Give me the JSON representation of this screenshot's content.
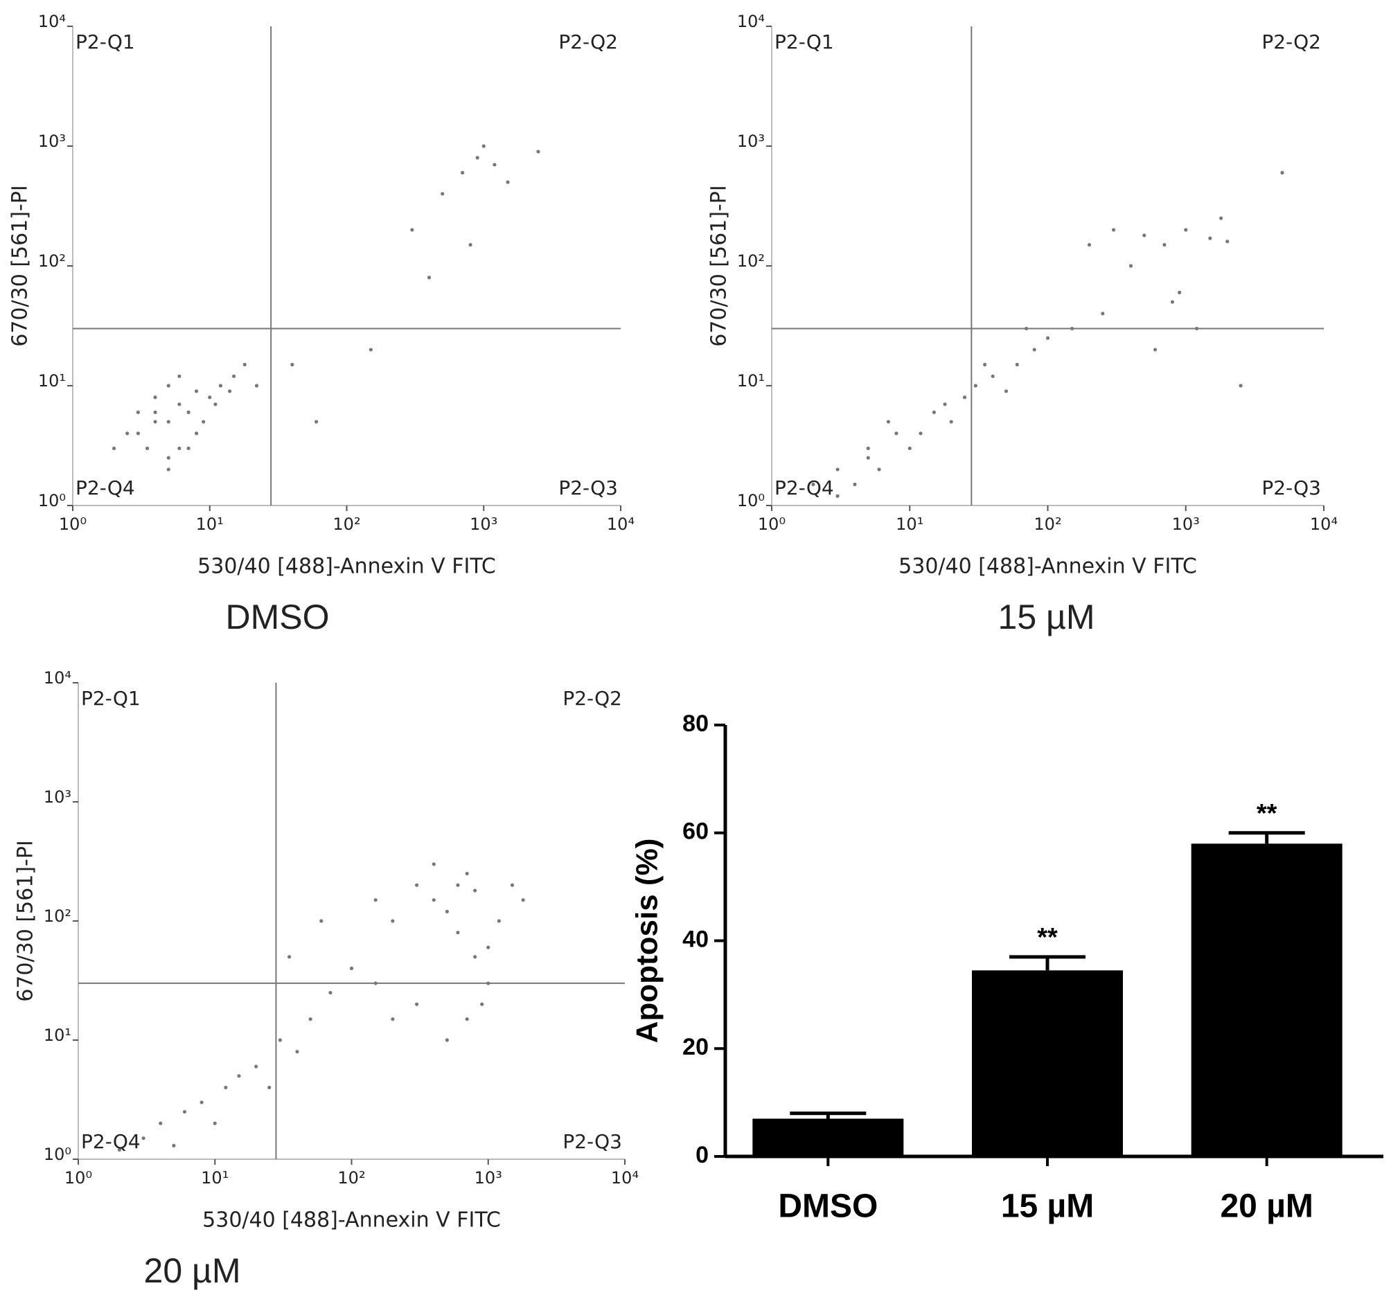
{
  "chart_data": [
    {
      "type": "scatter",
      "caption": "DMSO",
      "x_label": "530/40 [488]-Annexin V FITC",
      "y_label": "670/30 [561]-PI",
      "quadrant_labels": [
        "P2-Q1",
        "P2-Q2",
        "P2-Q3",
        "P2-Q4"
      ],
      "log_scale": true,
      "color": "#777777",
      "gate": {
        "x": 28,
        "y": 30
      },
      "xlim": [
        1,
        10000
      ],
      "ylim": [
        1,
        10000
      ],
      "xticks": [
        {
          "value": 1,
          "label": "10⁰"
        },
        {
          "value": 10,
          "label": "10¹"
        },
        {
          "value": 100,
          "label": "10²"
        },
        {
          "value": 1000,
          "label": "10³"
        },
        {
          "value": 10000,
          "label": "10⁴"
        }
      ],
      "yticks": [
        {
          "value": 1,
          "label": "10⁰"
        },
        {
          "value": 10,
          "label": "10¹"
        },
        {
          "value": 100,
          "label": "10²"
        },
        {
          "value": 1000,
          "label": "10³"
        },
        {
          "value": 10000,
          "label": "10⁴"
        }
      ],
      "x": [
        3,
        4,
        5,
        6,
        4,
        5,
        7,
        8,
        3.5,
        6,
        10,
        12,
        15,
        9,
        5,
        4,
        2.5,
        6,
        18,
        22,
        7,
        3,
        5,
        8,
        11,
        14,
        2,
        40,
        60,
        300,
        500,
        700,
        900,
        1200,
        1500,
        2500,
        400,
        800,
        150,
        1000
      ],
      "y": [
        4,
        6,
        5,
        3,
        8,
        2.5,
        6,
        9,
        3,
        12,
        8,
        10,
        12,
        5,
        2,
        5,
        4,
        7,
        15,
        10,
        3,
        6,
        10,
        4,
        7,
        9,
        3,
        15,
        5,
        200,
        400,
        600,
        800,
        700,
        500,
        900,
        80,
        150,
        20,
        1000
      ]
    },
    {
      "type": "scatter",
      "caption": "15 µM",
      "x_label": "530/40 [488]-Annexin V FITC",
      "y_label": "670/30 [561]-PI",
      "quadrant_labels": [
        "P2-Q1",
        "P2-Q2",
        "P2-Q3",
        "P2-Q4"
      ],
      "log_scale": true,
      "color": "#777777",
      "gate": {
        "x": 28,
        "y": 30
      },
      "xlim": [
        1,
        10000
      ],
      "ylim": [
        1,
        10000
      ],
      "xticks": [
        {
          "value": 1,
          "label": "10⁰"
        },
        {
          "value": 10,
          "label": "10¹"
        },
        {
          "value": 100,
          "label": "10²"
        },
        {
          "value": 1000,
          "label": "10³"
        },
        {
          "value": 10000,
          "label": "10⁴"
        }
      ],
      "yticks": [
        {
          "value": 1,
          "label": "10⁰"
        },
        {
          "value": 10,
          "label": "10¹"
        },
        {
          "value": 100,
          "label": "10²"
        },
        {
          "value": 1000,
          "label": "10³"
        },
        {
          "value": 10000,
          "label": "10⁴"
        }
      ],
      "x": [
        2,
        3,
        4,
        5,
        6,
        8,
        10,
        3,
        5,
        7,
        12,
        15,
        20,
        25,
        30,
        40,
        50,
        60,
        80,
        100,
        150,
        200,
        300,
        500,
        700,
        1000,
        1500,
        2000,
        800,
        1200,
        400,
        600,
        900,
        1800,
        250,
        2500,
        5000,
        70,
        35,
        18
      ],
      "y": [
        1.5,
        2,
        1.5,
        3,
        2,
        4,
        3,
        1.2,
        2.5,
        5,
        4,
        6,
        5,
        8,
        10,
        12,
        9,
        15,
        20,
        25,
        30,
        150,
        200,
        180,
        150,
        200,
        170,
        160,
        50,
        30,
        100,
        20,
        60,
        250,
        40,
        10,
        600,
        30,
        15,
        7
      ]
    },
    {
      "type": "scatter",
      "caption": "20 µM",
      "x_label": "530/40 [488]-Annexin V FITC",
      "y_label": "670/30 [561]-PI",
      "quadrant_labels": [
        "P2-Q1",
        "P2-Q2",
        "P2-Q3",
        "P2-Q4"
      ],
      "log_scale": true,
      "color": "#777777",
      "gate": {
        "x": 28,
        "y": 30
      },
      "xlim": [
        1,
        10000
      ],
      "ylim": [
        1,
        10000
      ],
      "xticks": [
        {
          "value": 1,
          "label": "10⁰"
        },
        {
          "value": 10,
          "label": "10¹"
        },
        {
          "value": 100,
          "label": "10²"
        },
        {
          "value": 1000,
          "label": "10³"
        },
        {
          "value": 10000,
          "label": "10⁴"
        }
      ],
      "yticks": [
        {
          "value": 1,
          "label": "10⁰"
        },
        {
          "value": 10,
          "label": "10¹"
        },
        {
          "value": 100,
          "label": "10²"
        },
        {
          "value": 1000,
          "label": "10³"
        },
        {
          "value": 10000,
          "label": "10⁴"
        }
      ],
      "x": [
        2,
        3,
        4,
        5,
        6,
        8,
        10,
        12,
        15,
        20,
        25,
        30,
        40,
        50,
        70,
        100,
        150,
        200,
        300,
        400,
        500,
        600,
        700,
        800,
        1000,
        1200,
        1500,
        200,
        300,
        500,
        700,
        900,
        400,
        600,
        800,
        1000,
        60,
        35,
        150,
        1800
      ],
      "y": [
        1.2,
        1.5,
        2,
        1.3,
        2.5,
        3,
        2,
        4,
        5,
        6,
        4,
        10,
        8,
        15,
        25,
        40,
        150,
        100,
        200,
        150,
        120,
        80,
        250,
        50,
        30,
        100,
        200,
        15,
        20,
        10,
        15,
        20,
        300,
        200,
        180,
        60,
        100,
        50,
        30,
        150
      ]
    },
    {
      "type": "bar",
      "y_label": "Apoptosis (%)",
      "color": "#000000",
      "categories": [
        "DMSO",
        "15 µM",
        "20 µM"
      ],
      "values": [
        7,
        34.5,
        58
      ],
      "errors": [
        1,
        2.5,
        2
      ],
      "significance": [
        null,
        "**",
        "**"
      ],
      "ylim": [
        0,
        80
      ],
      "yticks": [
        0,
        20,
        40,
        60,
        80
      ]
    }
  ]
}
